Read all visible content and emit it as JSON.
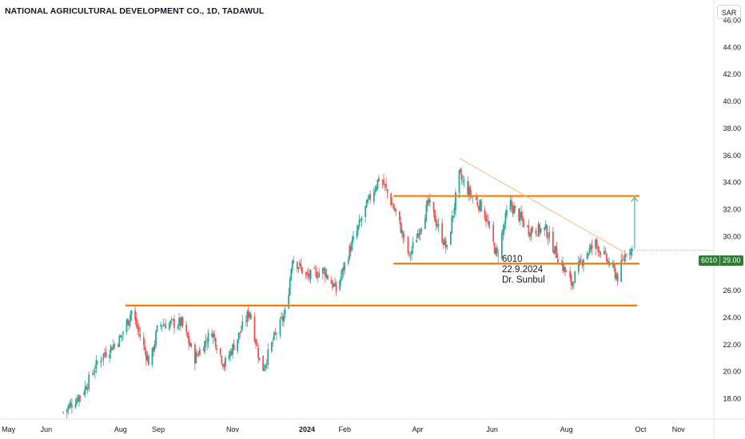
{
  "header": {
    "title": "NATIONAL AGRICULTURAL DEVELOPMENT CO., 1D, TADAWUL",
    "currency": "SAR"
  },
  "annotation": {
    "line1": "6010",
    "line2": "22.9.2024",
    "line3": "Dr. Sunbul"
  },
  "price_badge": {
    "symbol": "6010",
    "value": "29.00"
  },
  "colors": {
    "up": "#26a69a",
    "down": "#ef5350",
    "level": "#f57c00",
    "trend": "#ffb37a",
    "arrow": "#26a69a"
  },
  "chart_data": {
    "type": "candlestick",
    "y_ticks": [
      "46.00",
      "44.00",
      "42.00",
      "40.00",
      "38.00",
      "36.00",
      "34.00",
      "32.00",
      "30.00",
      "28.00",
      "26.00",
      "24.00",
      "22.00",
      "20.00",
      "18.00"
    ],
    "y_values": [
      46,
      44,
      42,
      40,
      38,
      36,
      34,
      32,
      30,
      28,
      26,
      24,
      22,
      20,
      18
    ],
    "ylim": [
      16.5,
      47.5
    ],
    "x_ticks": [
      "May",
      "Jun",
      "Aug",
      "Sep",
      "Nov",
      "2024",
      "Feb",
      "Apr",
      "Jun",
      "Aug",
      "Oct",
      "Nov"
    ],
    "x_tick_dates": [
      "2023-05-01",
      "2023-06-01",
      "2023-08-01",
      "2023-09-01",
      "2023-11-01",
      "2024-01-01",
      "2024-02-01",
      "2024-04-01",
      "2024-06-01",
      "2024-08-01",
      "2024-10-01",
      "2024-11-01"
    ],
    "xlim": [
      "2023-04-24",
      "2024-11-30"
    ],
    "series_path": [
      [
        "2023-06-15",
        17.0
      ],
      [
        "2023-07-01",
        18.5
      ],
      [
        "2023-07-15",
        21.0
      ],
      [
        "2023-08-01",
        22.5
      ],
      [
        "2023-08-10",
        24.5
      ],
      [
        "2023-08-25",
        20.5
      ],
      [
        "2023-09-01",
        23.5
      ],
      [
        "2023-09-20",
        23.6
      ],
      [
        "2023-10-01",
        21.0
      ],
      [
        "2023-10-15",
        23.0
      ],
      [
        "2023-10-25",
        20.5
      ],
      [
        "2023-11-05",
        22.5
      ],
      [
        "2023-11-15",
        24.5
      ],
      [
        "2023-11-25",
        20.0
      ],
      [
        "2023-12-05",
        22.5
      ],
      [
        "2023-12-15",
        24.5
      ],
      [
        "2023-12-20",
        28.5
      ],
      [
        "2024-01-01",
        27.0
      ],
      [
        "2024-01-15",
        27.5
      ],
      [
        "2024-01-25",
        26.0
      ],
      [
        "2024-02-05",
        29.0
      ],
      [
        "2024-02-20",
        32.5
      ],
      [
        "2024-03-01",
        34.5
      ],
      [
        "2024-03-15",
        31.5
      ],
      [
        "2024-03-25",
        28.5
      ],
      [
        "2024-04-10",
        32.5
      ],
      [
        "2024-04-25",
        29.0
      ],
      [
        "2024-05-05",
        34.5
      ],
      [
        "2024-05-15",
        33.0
      ],
      [
        "2024-05-25",
        32.0
      ],
      [
        "2024-06-05",
        28.5
      ],
      [
        "2024-06-15",
        32.5
      ],
      [
        "2024-07-01",
        30.5
      ],
      [
        "2024-07-15",
        30.5
      ],
      [
        "2024-07-25",
        28.5
      ],
      [
        "2024-08-05",
        26.5
      ],
      [
        "2024-08-15",
        28.5
      ],
      [
        "2024-08-25",
        29.5
      ],
      [
        "2024-09-05",
        28.0
      ],
      [
        "2024-09-12",
        27.0
      ],
      [
        "2024-09-20",
        29.2
      ],
      [
        "2024-09-24",
        29.0
      ]
    ],
    "levels": [
      {
        "value": 24.9,
        "from": "2023-08-05",
        "to": "2024-09-28"
      },
      {
        "value": 28.0,
        "from": "2024-03-12",
        "to": "2024-09-30"
      },
      {
        "value": 33.0,
        "from": "2024-03-12",
        "to": "2024-09-30"
      }
    ],
    "trendline": [
      [
        "2024-05-05",
        35.8
      ],
      [
        "2024-09-24",
        28.5
      ]
    ],
    "arrow": [
      [
        "2024-09-26",
        29.1
      ],
      [
        "2024-09-26",
        32.9
      ]
    ],
    "last_price": 29.0
  }
}
